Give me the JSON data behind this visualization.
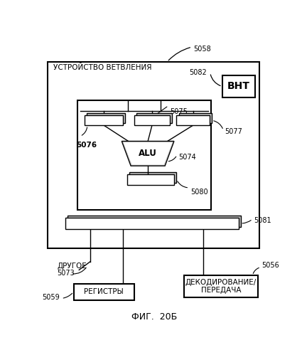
{
  "title": "ФИГ.  20Б",
  "background": "#ffffff",
  "label_5058": "5058",
  "label_5082": "5082",
  "label_BHT": "ВНТ",
  "label_5075": "5075",
  "label_5076": "5076",
  "label_5077": "5077",
  "label_ALU": "ALU",
  "label_5074": "5074",
  "label_5080": "5080",
  "label_5081": "5081",
  "label_5073": "5073",
  "label_DRUGOE": "ДРУГОЕ",
  "label_5059": "5059",
  "label_REGISTRY": "РЕГИСТРЫ",
  "label_5056": "5056",
  "label_DECODE": "ДЕКОДИРОВАНИЕ/\nПЕРЕДАЧА",
  "label_outer": "УСТРОЙСТВО ВЕТВЛЕНИЯ"
}
